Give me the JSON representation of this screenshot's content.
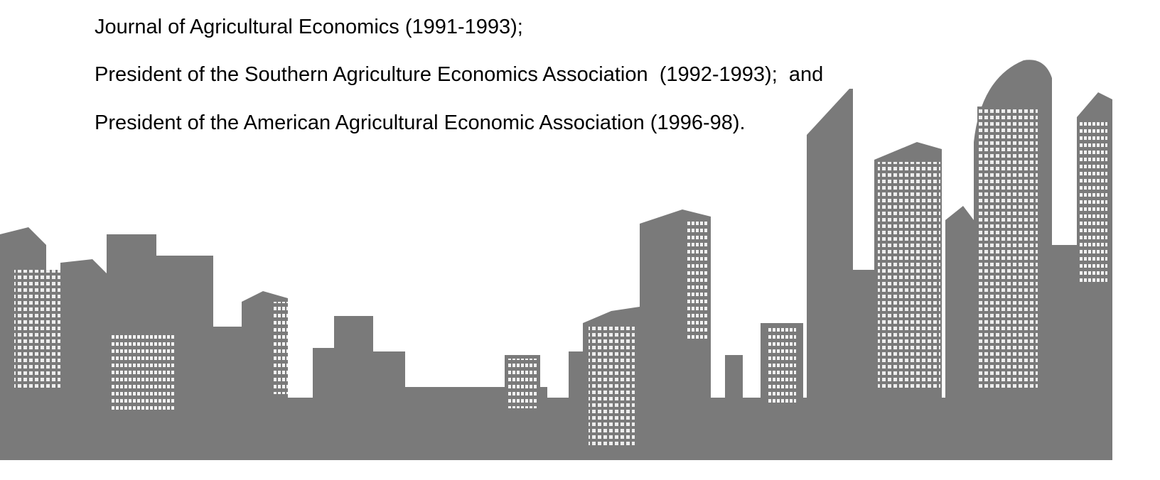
{
  "lines": [
    "Journal of Agricultural Economics (1991-1993);",
    "President of the Southern Agriculture Economics Association  (1992-1993);  and",
    "President of the American Agricultural Economic Association (1996-98)."
  ]
}
